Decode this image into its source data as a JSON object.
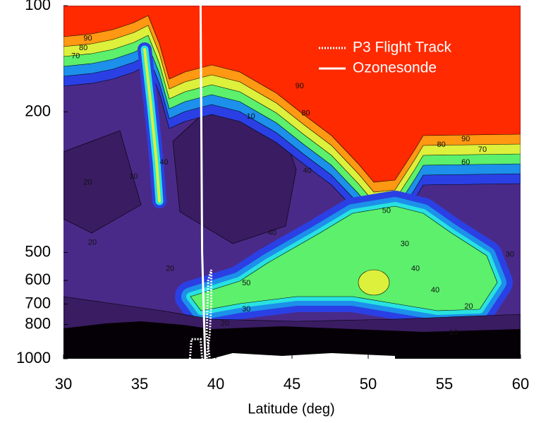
{
  "chart_data": {
    "type": "contour",
    "xlabel": "Latitude (deg)",
    "xlim": [
      30,
      60
    ],
    "xticks": [
      30,
      35,
      40,
      45,
      50,
      55,
      60
    ],
    "ylim": [
      1000,
      100
    ],
    "yticks": [
      100,
      200,
      500,
      600,
      700,
      800,
      1000
    ],
    "log_y": true,
    "legend": "upper right",
    "colorscale": [
      "#050005",
      "#3a1c62",
      "#4a2a88",
      "#2a40e4",
      "#1c90ea",
      "#28e2e0",
      "#5cf06c",
      "#dcf03c",
      "#ff9812",
      "#ff2a00"
    ],
    "series": [
      {
        "name": "P3 Flight Track",
        "color": "#ffffff",
        "style": "dotted",
        "x": [
          38.3,
          38.4,
          39.0,
          39.1,
          39.4,
          39.6,
          39.7,
          39.7,
          39.5,
          39.4,
          39.6
        ],
        "y": [
          1000,
          880,
          880,
          1000,
          1000,
          850,
          700,
          560,
          600,
          850,
          1000
        ]
      },
      {
        "name": "Ozonesonde",
        "color": "#ffffff",
        "style": "solid",
        "x": [
          39.0,
          39.1,
          39.3
        ],
        "y": [
          100,
          500,
          1000
        ]
      }
    ],
    "contour_labels": [
      {
        "x": 31.6,
        "y": 124,
        "value": 90
      },
      {
        "x": 31.3,
        "y": 132,
        "value": 80
      },
      {
        "x": 30.8,
        "y": 139,
        "value": 70
      },
      {
        "x": 42.3,
        "y": 206,
        "value": 10
      },
      {
        "x": 45.5,
        "y": 169,
        "value": 90
      },
      {
        "x": 45.9,
        "y": 202,
        "value": 80
      },
      {
        "x": 56.4,
        "y": 239,
        "value": 90
      },
      {
        "x": 54.8,
        "y": 248,
        "value": 80
      },
      {
        "x": 57.5,
        "y": 256,
        "value": 70
      },
      {
        "x": 56.4,
        "y": 278,
        "value": 60
      },
      {
        "x": 36.6,
        "y": 278,
        "value": 40
      },
      {
        "x": 34.6,
        "y": 305,
        "value": 10
      },
      {
        "x": 31.6,
        "y": 317,
        "value": 20
      },
      {
        "x": 46.0,
        "y": 294,
        "value": 40
      },
      {
        "x": 51.2,
        "y": 381,
        "value": 50
      },
      {
        "x": 43.7,
        "y": 441,
        "value": 40
      },
      {
        "x": 31.9,
        "y": 469,
        "value": 20
      },
      {
        "x": 37.0,
        "y": 556,
        "value": 20
      },
      {
        "x": 42.0,
        "y": 611,
        "value": 50
      },
      {
        "x": 42.0,
        "y": 724,
        "value": 30
      },
      {
        "x": 40.6,
        "y": 794,
        "value": 20
      },
      {
        "x": 52.4,
        "y": 473,
        "value": 30
      },
      {
        "x": 53.1,
        "y": 556,
        "value": 40
      },
      {
        "x": 59.3,
        "y": 507,
        "value": 30
      },
      {
        "x": 54.4,
        "y": 640,
        "value": 40
      },
      {
        "x": 56.6,
        "y": 711,
        "value": 20
      },
      {
        "x": 55.6,
        "y": 843,
        "value": 10
      }
    ]
  }
}
